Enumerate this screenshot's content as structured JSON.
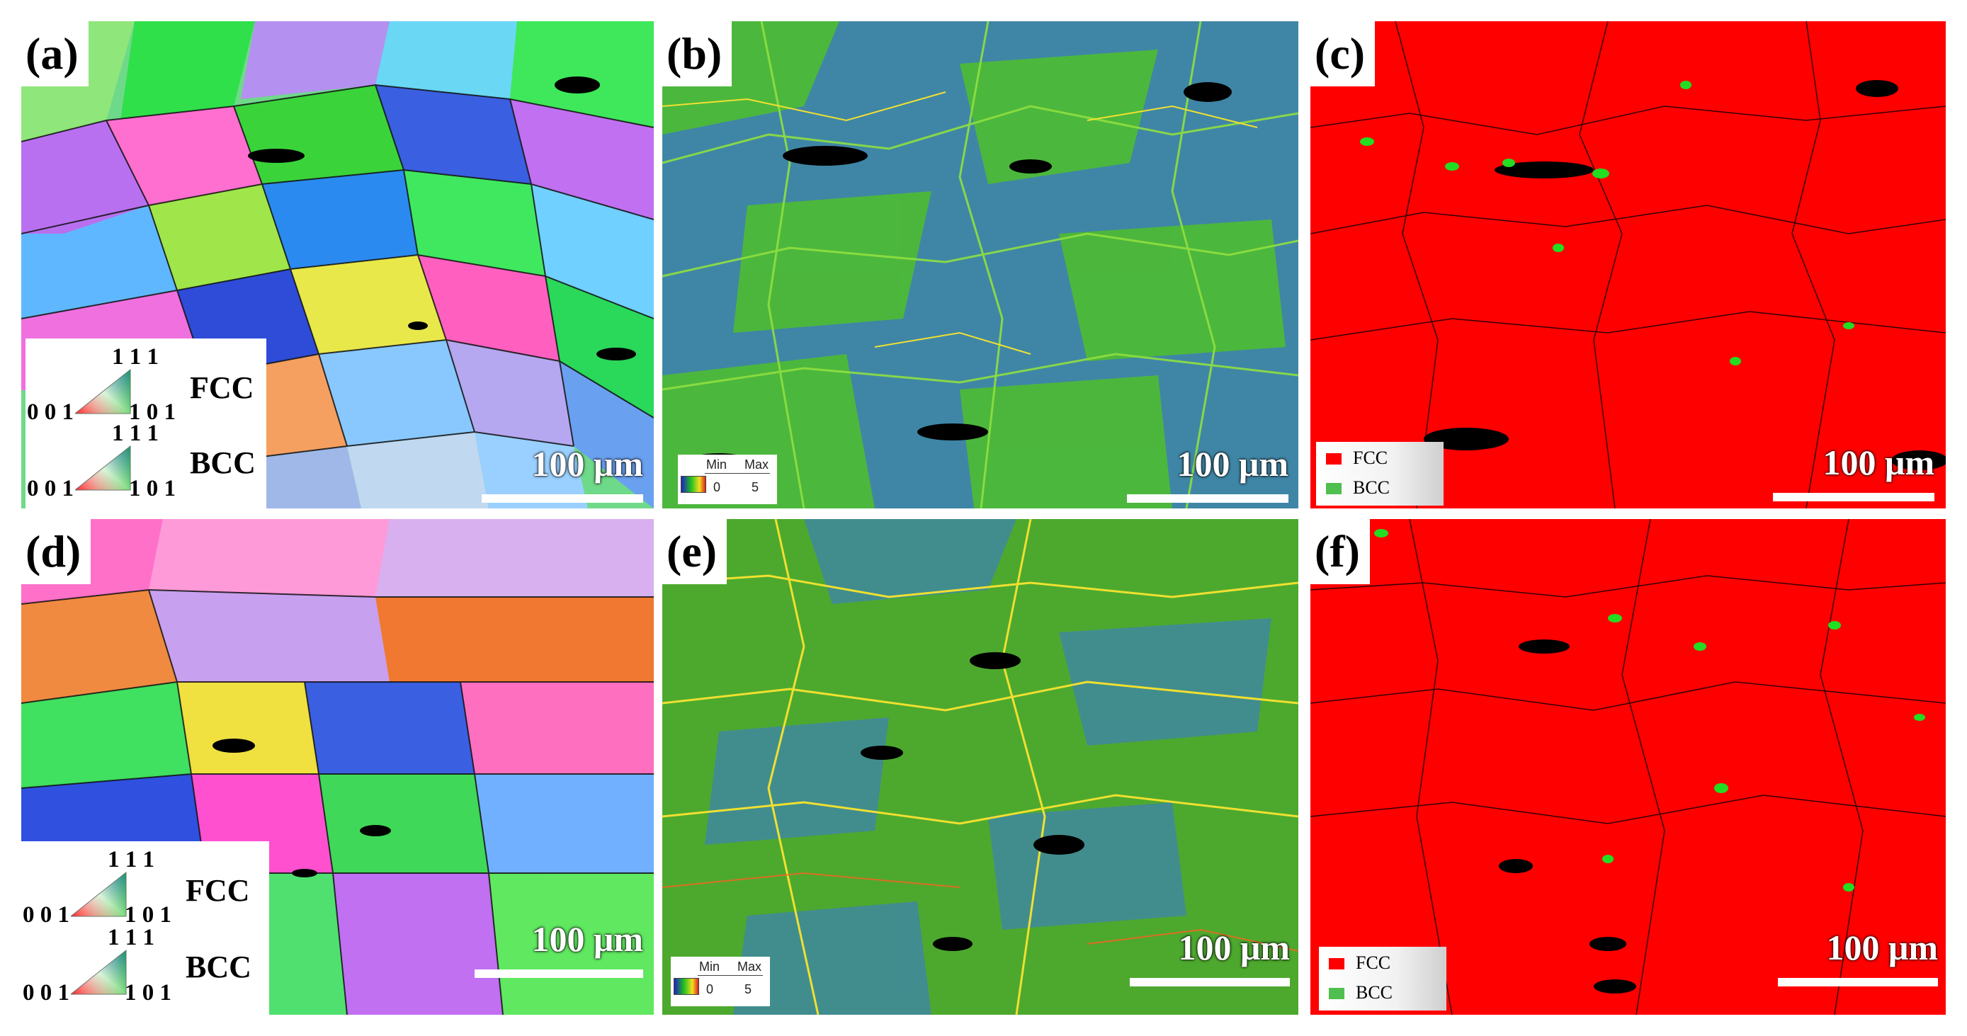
{
  "panels": {
    "a": {
      "label": "(a)",
      "scale": "100 μm"
    },
    "b": {
      "label": "(b)",
      "scale": "100 μm"
    },
    "c": {
      "label": "(c)",
      "scale": "100 μm"
    },
    "d": {
      "label": "(d)",
      "scale": "100 μm"
    },
    "e": {
      "label": "(e)",
      "scale": "100 μm"
    },
    "f": {
      "label": "(f)",
      "scale": "100 μm"
    }
  },
  "ipf_key": {
    "fcc_label": "FCC",
    "bcc_label": "BCC",
    "corner_top": "1 1 1",
    "corner_left": "0 0 1",
    "corner_right": "1 0 1"
  },
  "kam_key": {
    "min_label": "Min",
    "max_label": "Max",
    "min_value": "0",
    "max_value": "5"
  },
  "phase_key": {
    "fcc_label": "FCC",
    "bcc_label": "BCC"
  },
  "colors": {
    "fcc_phase": "#ff0000",
    "bcc_phase": "#22dd22",
    "kam_low": "#3a78a8",
    "kam_mid": "#4ec21e",
    "kam_high": "#f2e02a"
  }
}
